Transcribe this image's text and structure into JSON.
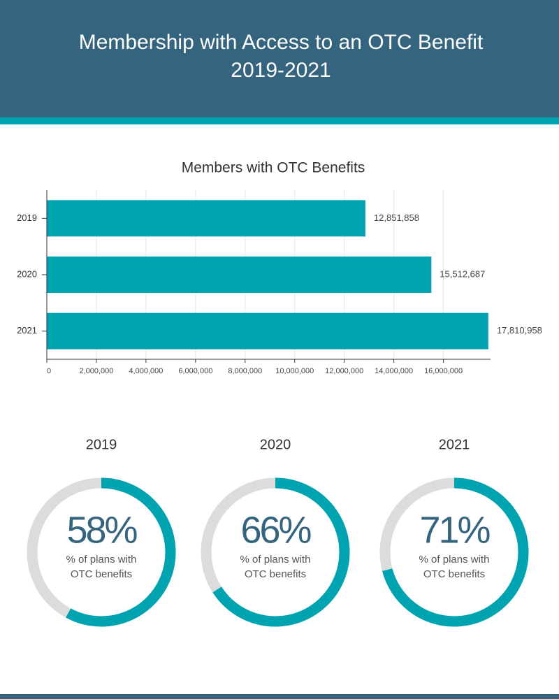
{
  "header": {
    "title": "Membership with Access to an OTC Benefit",
    "subtitle": "2019-2021"
  },
  "chart_data": [
    {
      "type": "bar",
      "orientation": "horizontal",
      "title": "Members with OTC Benefits",
      "categories": [
        "2019",
        "2020",
        "2021"
      ],
      "values": [
        12851858,
        15512687,
        17810958
      ],
      "value_labels": [
        "12,851,858",
        "15,512,687",
        "17,810,958"
      ],
      "color": "#00a3b0",
      "grid": true,
      "xlim": [
        0,
        17900000
      ],
      "xticks": [
        0,
        {
          "value": 2000000,
          "label": "2,000,000"
        },
        {
          "value": 4000000,
          "label": "4,000,000"
        },
        {
          "value": 6000000,
          "label": "6,000,000"
        },
        {
          "value": 8000000,
          "label": "8,000,000"
        },
        {
          "value": 10000000,
          "label": "10,000,000"
        },
        {
          "value": 12000000,
          "label": "12,000,000"
        },
        {
          "value": 14000000,
          "label": "14,000,000"
        },
        {
          "value": 16000000,
          "label": "16,000,000"
        }
      ]
    },
    {
      "type": "donut",
      "title": "2019",
      "value": 58,
      "value_label": "58%",
      "label": "% of plans with OTC benefits",
      "color": "#00a3b0",
      "track_color": "#dcdcdc"
    },
    {
      "type": "donut",
      "title": "2020",
      "value": 66,
      "value_label": "66%",
      "label": "% of plans with OTC benefits",
      "color": "#00a3b0",
      "track_color": "#dcdcdc"
    },
    {
      "type": "donut",
      "title": "2021",
      "value": 71,
      "value_label": "71%",
      "label": "% of plans with OTC benefits",
      "color": "#00a3b0",
      "track_color": "#dcdcdc"
    }
  ]
}
